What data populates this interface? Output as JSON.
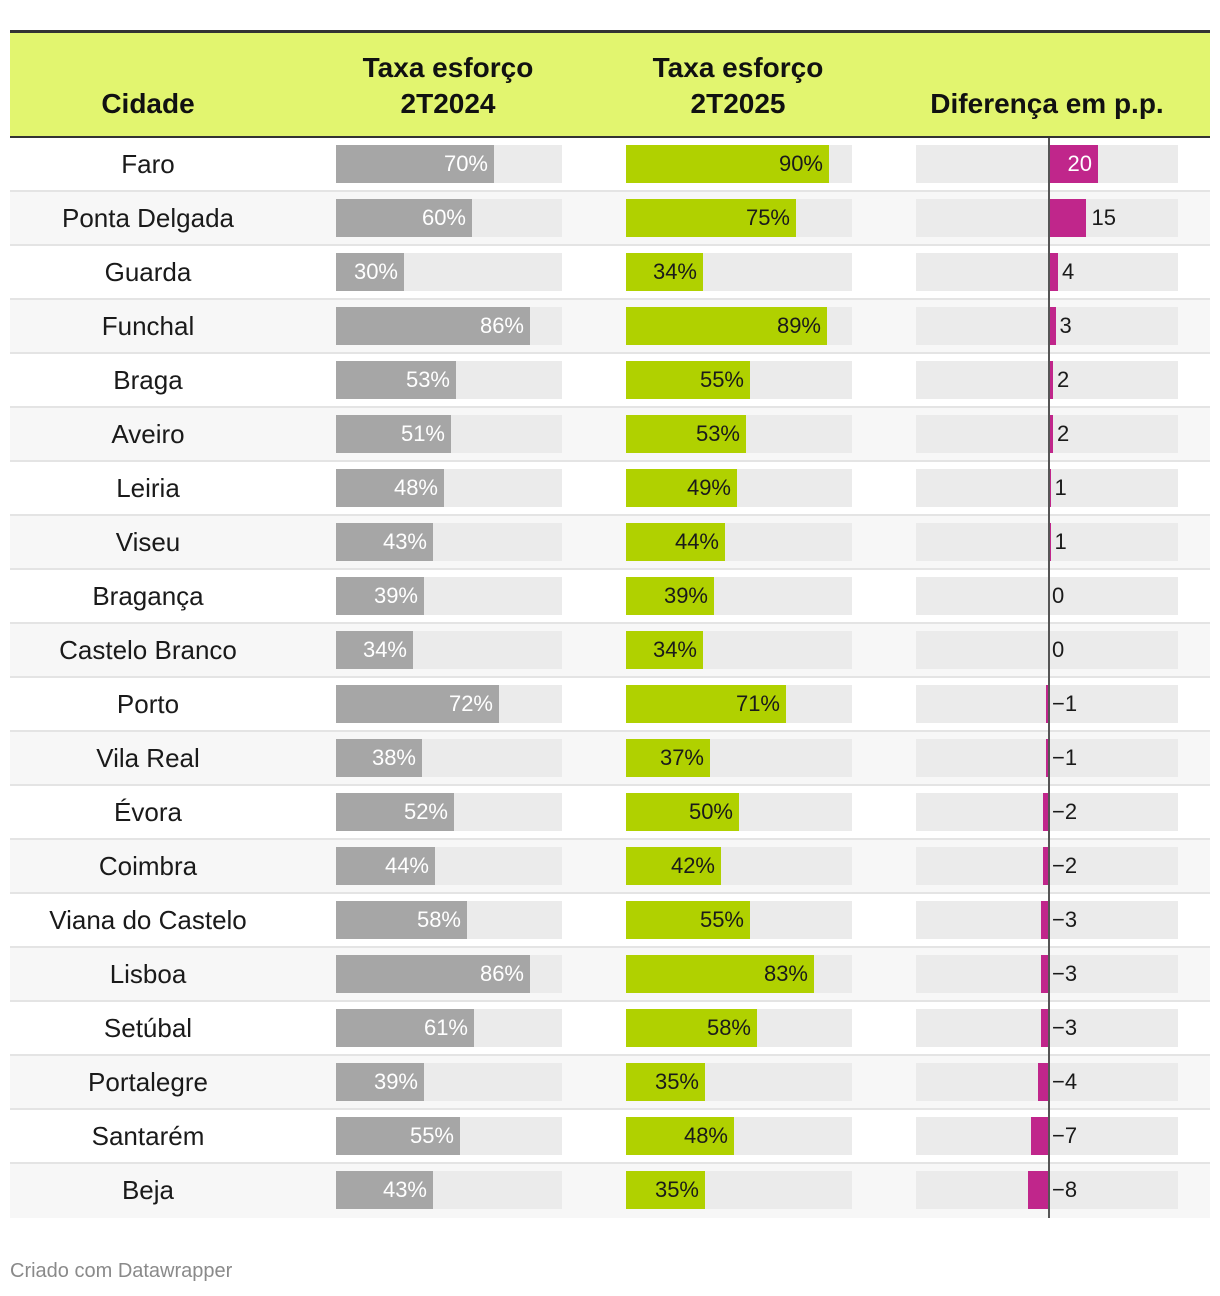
{
  "table": {
    "header": {
      "city": "Cidade",
      "col2024": [
        "Taxa esforço",
        "2T2024"
      ],
      "col2025": [
        "Taxa esforço",
        "2T2025"
      ],
      "diff": "Diferença em p.p."
    },
    "colors": {
      "header_bg": "#e2f56f",
      "bar_2024": "#a6a6a6",
      "bar_2025": "#b0d100",
      "diff_bar": "#c0268b",
      "track": "#ebebeb"
    }
  },
  "chart_data": {
    "type": "table",
    "columns": [
      "Cidade",
      "Taxa esforço 2T2024",
      "Taxa esforço 2T2025",
      "Diferença em p.p."
    ],
    "scale_max": 100,
    "rows": [
      {
        "city": "Faro",
        "v2024": 70,
        "l2024": "70%",
        "v2025": 90,
        "l2025": "90%",
        "diff": 20,
        "ldiff": "20"
      },
      {
        "city": "Ponta Delgada",
        "v2024": 60,
        "l2024": "60%",
        "v2025": 75,
        "l2025": "75%",
        "diff": 15,
        "ldiff": "15"
      },
      {
        "city": "Guarda",
        "v2024": 30,
        "l2024": "30%",
        "v2025": 34,
        "l2025": "34%",
        "diff": 4,
        "ldiff": "4"
      },
      {
        "city": "Funchal",
        "v2024": 86,
        "l2024": "86%",
        "v2025": 89,
        "l2025": "89%",
        "diff": 3,
        "ldiff": "3"
      },
      {
        "city": "Braga",
        "v2024": 53,
        "l2024": "53%",
        "v2025": 55,
        "l2025": "55%",
        "diff": 2,
        "ldiff": "2"
      },
      {
        "city": "Aveiro",
        "v2024": 51,
        "l2024": "51%",
        "v2025": 53,
        "l2025": "53%",
        "diff": 2,
        "ldiff": "2"
      },
      {
        "city": "Leiria",
        "v2024": 48,
        "l2024": "48%",
        "v2025": 49,
        "l2025": "49%",
        "diff": 1,
        "ldiff": "1"
      },
      {
        "city": "Viseu",
        "v2024": 43,
        "l2024": "43%",
        "v2025": 44,
        "l2025": "44%",
        "diff": 1,
        "ldiff": "1"
      },
      {
        "city": "Bragança",
        "v2024": 39,
        "l2024": "39%",
        "v2025": 39,
        "l2025": "39%",
        "diff": 0,
        "ldiff": "0"
      },
      {
        "city": "Castelo Branco",
        "v2024": 34,
        "l2024": "34%",
        "v2025": 34,
        "l2025": "34%",
        "diff": 0,
        "ldiff": "0"
      },
      {
        "city": "Porto",
        "v2024": 72,
        "l2024": "72%",
        "v2025": 71,
        "l2025": "71%",
        "diff": -1,
        "ldiff": "−1"
      },
      {
        "city": "Vila Real",
        "v2024": 38,
        "l2024": "38%",
        "v2025": 37,
        "l2025": "37%",
        "diff": -1,
        "ldiff": "−1"
      },
      {
        "city": "Évora",
        "v2024": 52,
        "l2024": "52%",
        "v2025": 50,
        "l2025": "50%",
        "diff": -2,
        "ldiff": "−2"
      },
      {
        "city": "Coimbra",
        "v2024": 44,
        "l2024": "44%",
        "v2025": 42,
        "l2025": "42%",
        "diff": -2,
        "ldiff": "−2"
      },
      {
        "city": "Viana do Castelo",
        "v2024": 58,
        "l2024": "58%",
        "v2025": 55,
        "l2025": "55%",
        "diff": -3,
        "ldiff": "−3"
      },
      {
        "city": "Lisboa",
        "v2024": 86,
        "l2024": "86%",
        "v2025": 83,
        "l2025": "83%",
        "diff": -3,
        "ldiff": "−3"
      },
      {
        "city": "Setúbal",
        "v2024": 61,
        "l2024": "61%",
        "v2025": 58,
        "l2025": "58%",
        "diff": -3,
        "ldiff": "−3"
      },
      {
        "city": "Portalegre",
        "v2024": 39,
        "l2024": "39%",
        "v2025": 35,
        "l2025": "35%",
        "diff": -4,
        "ldiff": "−4"
      },
      {
        "city": "Santarém",
        "v2024": 55,
        "l2024": "55%",
        "v2025": 48,
        "l2025": "48%",
        "diff": -7,
        "ldiff": "−7"
      },
      {
        "city": "Beja",
        "v2024": 43,
        "l2024": "43%",
        "v2025": 35,
        "l2025": "35%",
        "diff": -8,
        "ldiff": "−8"
      }
    ]
  },
  "footer": {
    "credit": "Criado com Datawrapper"
  }
}
